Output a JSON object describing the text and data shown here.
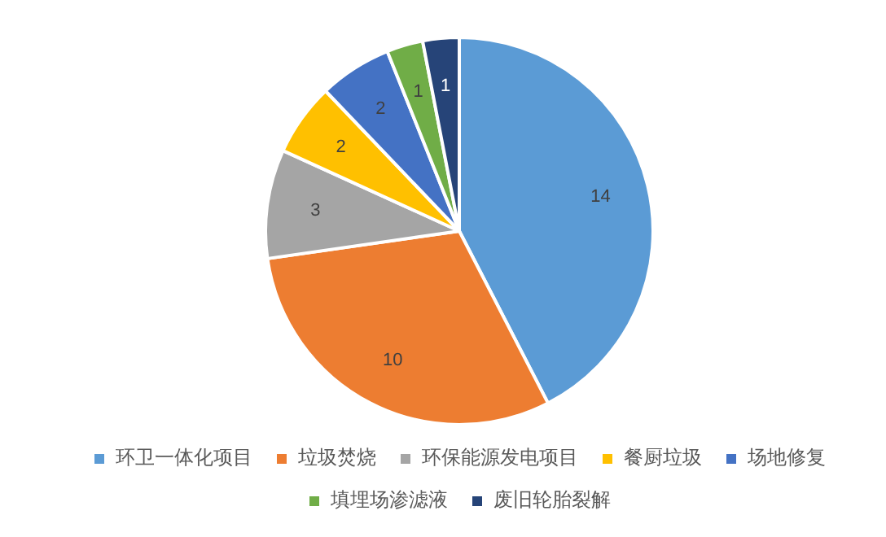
{
  "chart_data": {
    "type": "pie",
    "categories": [
      "环卫一体化项目",
      "垃圾焚烧",
      "环保能源发电项目",
      "餐厨垃圾",
      "场地修复",
      "填埋场渗滤液",
      "废旧轮胎裂解"
    ],
    "values": [
      14,
      10,
      3,
      2,
      2,
      1,
      1
    ],
    "colors": [
      "#5b9bd5",
      "#ed7d31",
      "#a5a5a5",
      "#ffc000",
      "#4472c4",
      "#70ad47",
      "#264478"
    ],
    "data_labels": true,
    "legend": "bottom"
  }
}
